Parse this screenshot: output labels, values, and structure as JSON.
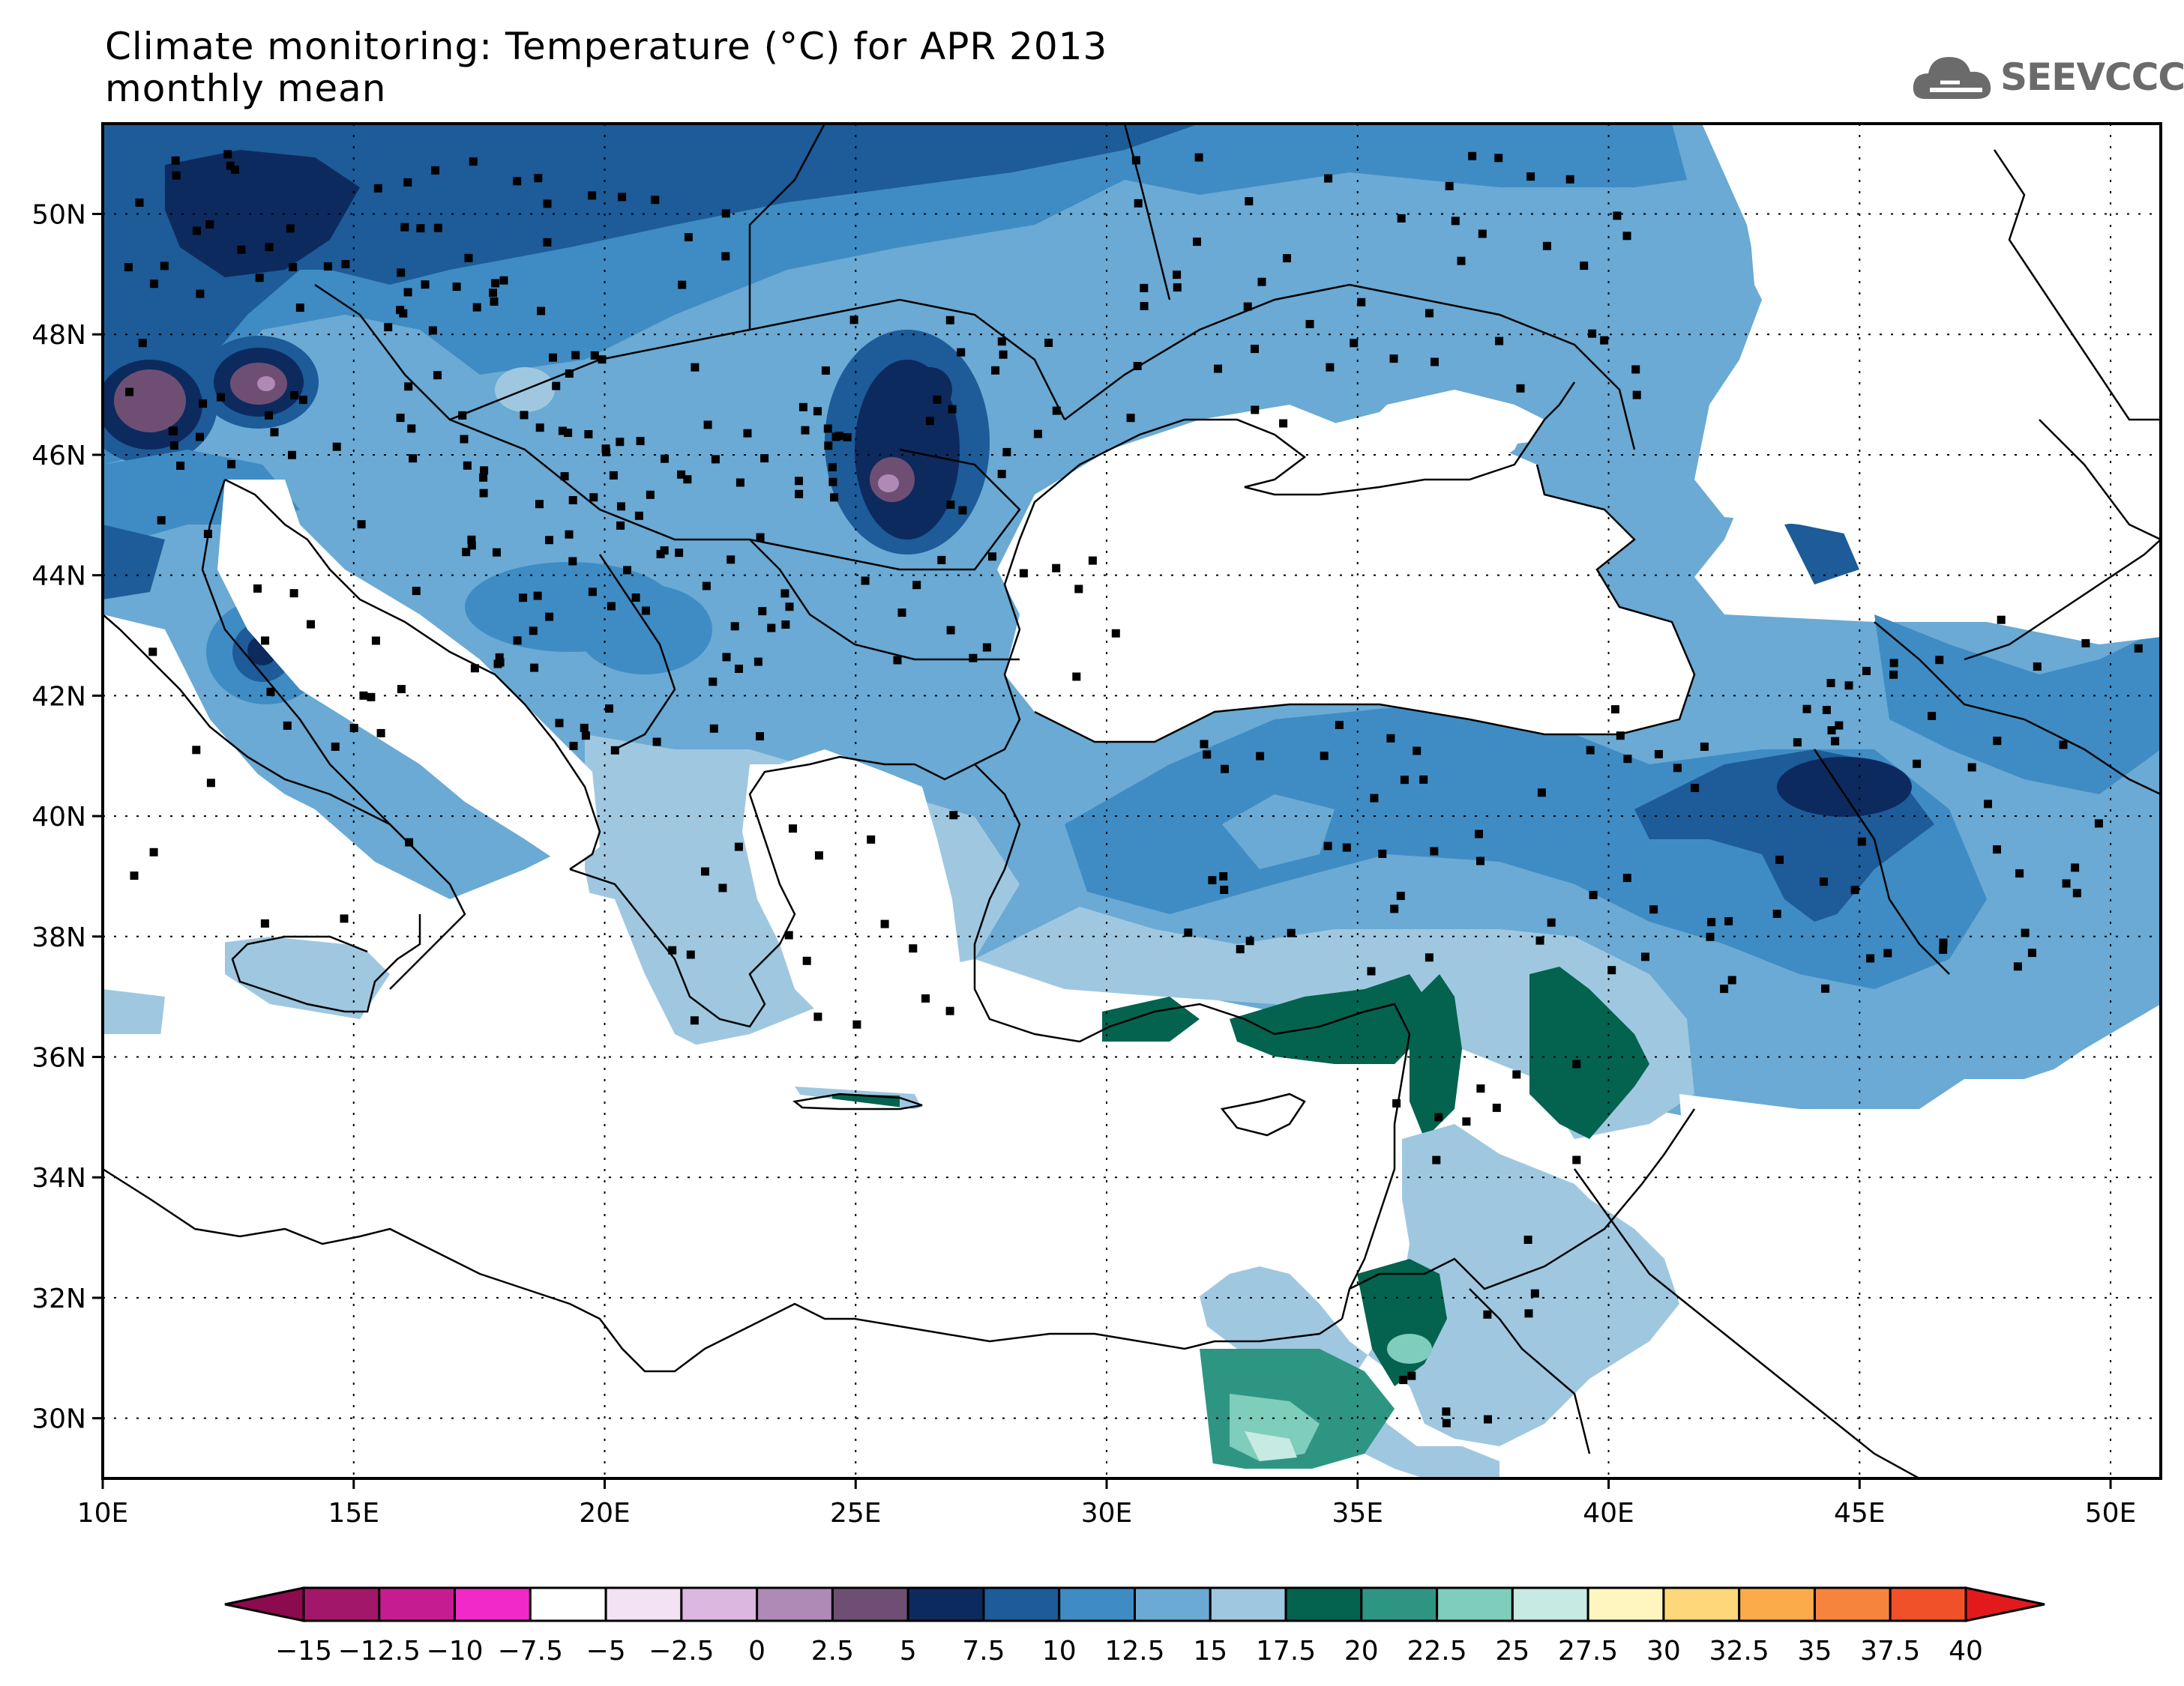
{
  "title": {
    "line1": "Climate monitoring: Temperature (°C) for APR 2013",
    "line2": "monthly mean"
  },
  "logo": {
    "text": "SEEVCCC",
    "icon": "cloud-icon",
    "color": "#6b6b6b"
  },
  "map": {
    "lon_range": [
      10,
      51
    ],
    "lat_range": [
      29,
      51.5
    ],
    "lon_ticks": [
      "10E",
      "15E",
      "20E",
      "25E",
      "30E",
      "35E",
      "40E",
      "45E",
      "50E"
    ],
    "lat_ticks": [
      "30N",
      "32N",
      "34N",
      "36N",
      "38N",
      "40N",
      "42N",
      "44N",
      "46N",
      "48N",
      "50N"
    ]
  },
  "colorbar": {
    "labels": [
      "−15",
      "−12.5",
      "−10",
      "−7.5",
      "−5",
      "−2.5",
      "0",
      "2.5",
      "5",
      "7.5",
      "10",
      "12.5",
      "15",
      "17.5",
      "20",
      "22.5",
      "25",
      "27.5",
      "30",
      "32.5",
      "35",
      "37.5",
      "40"
    ],
    "colors": [
      "#8c0a4e",
      "#a3176a",
      "#c61c91",
      "#f029c8",
      "#ffffff",
      "#f2e2f3",
      "#dcb7e0",
      "#b08ab7",
      "#6e4f73",
      "#0d2a5e",
      "#1d5b99",
      "#3f8cc4",
      "#6aaad4",
      "#9fc8e0",
      "#04634f",
      "#2f9583",
      "#7fcdbb",
      "#c7eae2",
      "#fff6bf",
      "#fdd77a",
      "#fbab49",
      "#f7843d",
      "#f15129",
      "#e31a1c"
    ]
  }
}
